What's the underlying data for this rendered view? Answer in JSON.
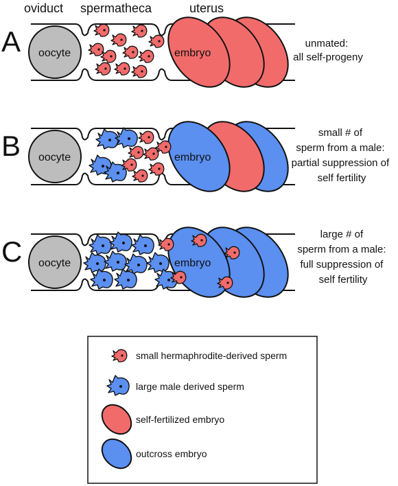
{
  "headers": {
    "oviduct": "oviduct",
    "spermatheca": "spermatheca",
    "uterus": "uterus"
  },
  "cell_labels": {
    "oocyte": "oocyte",
    "embryo": "embryo"
  },
  "panels": [
    {
      "letter": "A",
      "description": [
        "unmated:",
        "all self-progeny"
      ],
      "embryo_colors": [
        "red",
        "red",
        "red"
      ]
    },
    {
      "letter": "B",
      "description": [
        "small # of",
        "sperm from a male:",
        "partial suppression of",
        "self fertility"
      ],
      "embryo_colors": [
        "blue",
        "red",
        "blue"
      ]
    },
    {
      "letter": "C",
      "description": [
        "large # of",
        "sperm from a male:",
        "full suppression of",
        "self fertility"
      ],
      "embryo_colors": [
        "blue",
        "blue",
        "blue"
      ]
    }
  ],
  "legend": [
    {
      "icon": "small-sperm-icon",
      "label": "small hermaphrodite-derived sperm"
    },
    {
      "icon": "large-sperm-icon",
      "label": "large male derived sperm"
    },
    {
      "icon": "red-embryo-icon",
      "label": "self-fertilized embryo"
    },
    {
      "icon": "blue-embryo-icon",
      "label": "outcross embryo"
    }
  ],
  "colors": {
    "self": "#f26b6b",
    "outcross": "#5b8ff0",
    "oocyte": "#bdbdbd",
    "outline": "#111111"
  }
}
